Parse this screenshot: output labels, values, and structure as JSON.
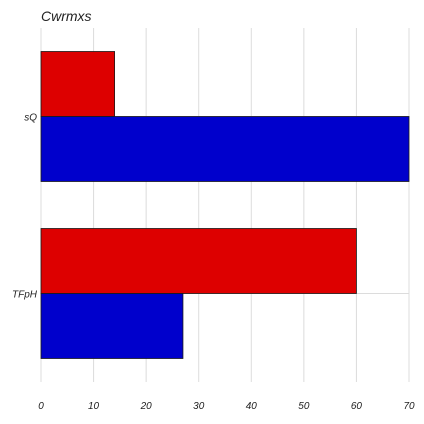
{
  "chart_data": {
    "type": "bar",
    "orientation": "horizontal",
    "title": "Cwrmxs",
    "xlabel": "",
    "ylabel": "",
    "categories": [
      "sQ",
      "TFpH"
    ],
    "series": [
      {
        "values": [
          14,
          60
        ],
        "color": "#dd0000"
      },
      {
        "values": [
          70,
          27
        ],
        "color": "#0000cc"
      }
    ],
    "xlim": [
      0,
      70
    ],
    "xticks": [
      0,
      10,
      20,
      30,
      40,
      50,
      60,
      70
    ],
    "grid": true
  }
}
